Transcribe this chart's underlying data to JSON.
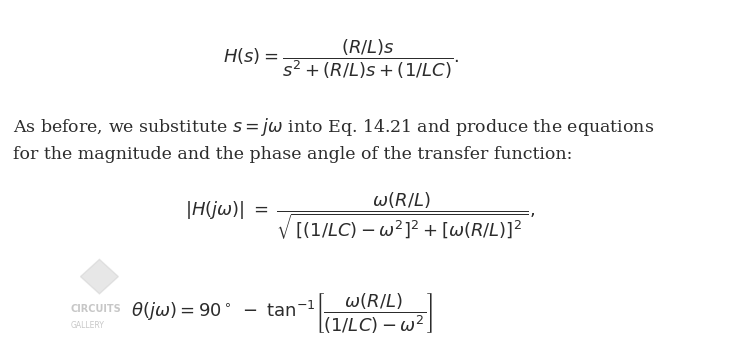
{
  "background_color": "#ffffff",
  "eq1": "H(s) = \\dfrac{(R/L)s}{s^2 + (R/L)s + (1/LC)}.",
  "text1_part1": "As before, we substitute ",
  "text1_italic1": "s",
  "text1_part2": " = ",
  "text1_italic2": "j\\omega",
  "text1_part3": " into Eq. 14.21 and produce the equations",
  "text1_line2": "for the magnitude and the phase angle of the transfer function:",
  "eq2_lhs": "|H(j\\omega)| = ",
  "eq2_num": "\\omega(R/L)",
  "eq2_den": "\\sqrt{[(1/LC) - \\omega^2]^2 + [\\omega(R/L)]^2}",
  "eq2_comma": ",",
  "eq3": "\\theta(j\\omega) = 90^\\circ \\; - \\; \\tan^{-1}\\!\\left[\\dfrac{\\omega(R/L)}{(1/LC) - \\omega^2}\\right]",
  "watermark_text": "CIRCUITS\nGALLERY",
  "watermark_color": "#c8c8c8",
  "text_color": "#2c2c2c",
  "fontsize_eq": 13,
  "fontsize_text": 12.5
}
